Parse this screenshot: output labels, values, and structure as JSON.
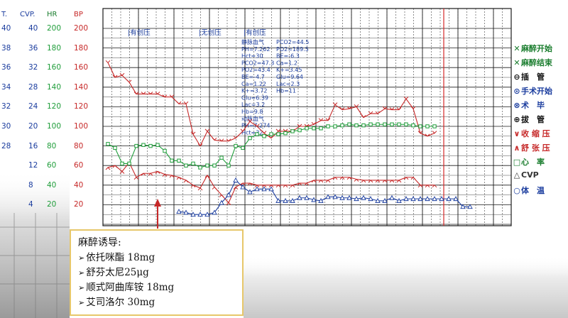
{
  "colors": {
    "grid": "#1a1a1a",
    "hr": "#1f9d3a",
    "bp": "#c62828",
    "cvp": "#1a3c9e",
    "t": "#1a3c9e",
    "note_border": "#e7c76a",
    "red_line": "#d62828",
    "arrow": "#c62828"
  },
  "axes": {
    "headers": {
      "t": "T.",
      "cvp": "CVP.",
      "hr": "HR",
      "bp": "BP"
    },
    "t_ticks": [
      "40",
      "38",
      "36",
      "34",
      "32",
      "30",
      "28"
    ],
    "cvp_ticks": [
      "40",
      "36",
      "32",
      "28",
      "24",
      "20",
      "16",
      "12",
      "8",
      "4"
    ],
    "hr_ticks": [
      "200",
      "180",
      "160",
      "140",
      "120",
      "100",
      "80",
      "60",
      "40",
      "20"
    ],
    "bp_ticks": [
      "200",
      "180",
      "160",
      "140",
      "120",
      "100",
      "80",
      "60",
      "40",
      "20"
    ]
  },
  "phase_labels": [
    "|有创压",
    "|无创压",
    "|有创压"
  ],
  "annotations": {
    "col1": [
      "静脉血气",
      "PH=7.262",
      "Hct=30",
      "PCO2=47.3",
      "PO2=43.4",
      "BE=-4.7",
      "Ca=1.22",
      "K+=3.72",
      "Glu=6.39",
      "Lac=3.2",
      "Hb=9.8",
      "动脉血气",
      "PH=7.274",
      "Hct=32"
    ],
    "col2": [
      "PCO2=44.5",
      "PO2=189.5",
      "BE=-6.3",
      "Ca=1.2",
      "K+=3.45",
      "Glu=9.64",
      "Lac=2.3",
      "Hb=11"
    ]
  },
  "legend": [
    {
      "sym": "✕",
      "label": "麻醉开始",
      "color": "#1a7d2e"
    },
    {
      "sym": "✕",
      "label": "麻醉结束",
      "color": "#1a7d2e"
    },
    {
      "sym": "⊖",
      "label": "插　管",
      "color": "#111111"
    },
    {
      "sym": "⊙",
      "label": "手术开始",
      "color": "#1a3c9e"
    },
    {
      "sym": "⊗",
      "label": "术　毕",
      "color": "#1a3c9e"
    },
    {
      "sym": "⊕",
      "label": "拔　管",
      "color": "#111111"
    },
    {
      "sym": "∨",
      "label": "收 缩 压",
      "color": "#c62828"
    },
    {
      "sym": "∧",
      "label": "舒 张 压",
      "color": "#c62828"
    },
    {
      "sym": "□",
      "label": "心　率",
      "color": "#1a7d2e"
    },
    {
      "sym": "△",
      "label": "CVP",
      "color": "#333333"
    },
    {
      "sym": "○",
      "label": "体　温",
      "color": "#1a3c9e"
    }
  ],
  "note": {
    "title": "麻醉诱导:",
    "items": [
      "依托咪酯 18mg",
      "舒芬太尼25μg",
      "顺式阿曲库铵 18mg",
      "艾司洛尔 30mg"
    ]
  },
  "chart_data": {
    "type": "line",
    "y_axis": "BP / HR scale",
    "ylim": [
      0,
      200
    ],
    "grid": true,
    "series": [
      {
        "name": "收缩压",
        "color": "#c62828",
        "values": [
          165,
          150,
          152,
          145,
          133,
          133,
          133,
          133,
          130,
          130,
          123,
          123,
          92,
          80,
          95,
          86,
          85,
          85,
          88,
          95,
          105,
          100,
          93,
          88,
          95,
          95,
          95,
          100,
          100,
          102,
          106,
          106,
          122,
          117,
          118,
          120,
          109,
          113,
          113,
          118,
          117,
          117,
          128,
          118,
          93,
          90,
          93
        ]
      },
      {
        "name": "舒张压",
        "color": "#c62828",
        "values": [
          58,
          60,
          54,
          63,
          48,
          52,
          52,
          54,
          51,
          50,
          48,
          45,
          40,
          37,
          50,
          38,
          30,
          22,
          38,
          42,
          42,
          40,
          40,
          40,
          40,
          40,
          40,
          42,
          42,
          45,
          45,
          45,
          48,
          48,
          48,
          46,
          45,
          45,
          45,
          45,
          45,
          45,
          48,
          48,
          40,
          40,
          40
        ]
      },
      {
        "name": "心率",
        "color": "#1f9d3a",
        "values": [
          82,
          78,
          62,
          62,
          80,
          81,
          80,
          81,
          75,
          65,
          65,
          60,
          62,
          58,
          60,
          60,
          68,
          60,
          80,
          78,
          88,
          92,
          90,
          92,
          92,
          93,
          95,
          96,
          98,
          98,
          98,
          100,
          100,
          101,
          102,
          101,
          101,
          102,
          102,
          102,
          102,
          102,
          102,
          101,
          100,
          100,
          100
        ]
      },
      {
        "name": "CVP",
        "color": "#1a3c9e",
        "values": [
          13,
          12,
          10,
          10,
          10,
          12,
          22,
          30,
          45,
          38,
          33,
          36,
          36,
          36,
          24,
          24,
          24,
          27,
          27,
          25,
          24,
          28,
          28,
          27,
          27,
          26,
          27,
          26,
          24,
          24,
          27,
          24,
          26,
          26,
          26,
          26,
          26,
          26,
          26,
          26,
          18,
          18
        ]
      }
    ]
  }
}
